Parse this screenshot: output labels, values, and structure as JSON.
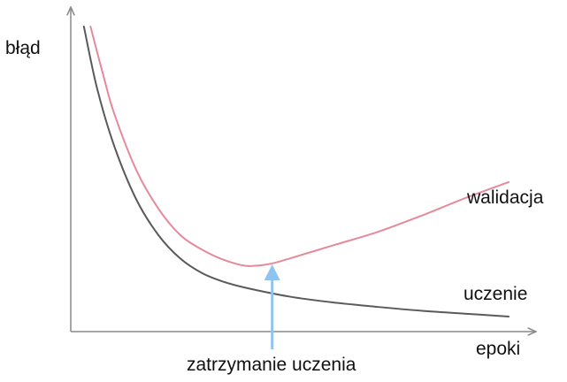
{
  "chart_data": {
    "type": "line",
    "title": "",
    "xlabel": "epoki",
    "ylabel": "błąd",
    "xlim": [
      0,
      10
    ],
    "ylim": [
      0,
      10
    ],
    "grid": false,
    "legend": "none",
    "series": [
      {
        "name": "uczenie",
        "color": "#5a5a5a",
        "x": [
          0.3,
          0.6,
          1.0,
          1.5,
          2.0,
          2.5,
          3.0,
          3.5,
          4.0,
          5.0,
          6.0,
          7.0,
          8.0,
          9.0,
          10.0
        ],
        "y": [
          10.0,
          7.9,
          5.9,
          4.1,
          2.9,
          2.1,
          1.6,
          1.3,
          1.1,
          0.8,
          0.6,
          0.45,
          0.32,
          0.22,
          0.12
        ]
      },
      {
        "name": "walidacja",
        "color": "#e58a9a",
        "x": [
          0.45,
          0.75,
          1.0,
          1.5,
          2.0,
          2.5,
          3.0,
          3.5,
          4.0,
          4.5,
          5.0,
          6.0,
          7.0,
          8.0,
          9.0,
          10.0
        ],
        "y": [
          10.0,
          8.3,
          7.0,
          5.1,
          3.8,
          2.9,
          2.4,
          2.05,
          1.85,
          1.9,
          2.1,
          2.55,
          3.0,
          3.55,
          4.15,
          4.7
        ]
      }
    ],
    "annotations": [
      {
        "text": "zatrzymanie uczenia",
        "x": 4.6,
        "y_from": 0,
        "y_to": 1.85,
        "color": "#8fc3f0"
      }
    ]
  }
}
